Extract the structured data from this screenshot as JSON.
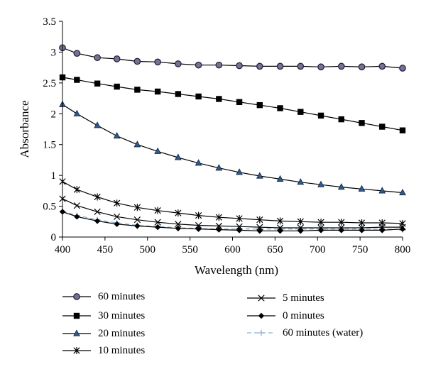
{
  "chart_data": {
    "type": "line",
    "title": "",
    "xlabel": "Wavelength (nm)",
    "ylabel": "Absorbance",
    "xlim": [
      400,
      800
    ],
    "ylim": [
      0,
      3.5
    ],
    "xticks": [
      400,
      450,
      500,
      550,
      600,
      650,
      700,
      750,
      800
    ],
    "yticks": [
      0,
      0.5,
      1,
      1.5,
      2,
      2.5,
      3,
      3.5
    ],
    "ytick_labels": [
      "0",
      "0.5",
      "1",
      "1.5",
      "2",
      "2.5",
      "3",
      "3.5"
    ],
    "grid": false,
    "legend_position": "bottom",
    "x": [
      400,
      417,
      441,
      464,
      488,
      512,
      536,
      560,
      584,
      608,
      632,
      656,
      680,
      704,
      728,
      752,
      776,
      800
    ],
    "series": [
      {
        "name": "60 minutes",
        "marker": "circle",
        "color": "#3a3050",
        "values": [
          3.07,
          2.98,
          2.91,
          2.89,
          2.85,
          2.84,
          2.81,
          2.79,
          2.79,
          2.78,
          2.77,
          2.77,
          2.77,
          2.76,
          2.77,
          2.76,
          2.77,
          2.74
        ]
      },
      {
        "name": "30 minutes",
        "marker": "square",
        "color": "#000000",
        "values": [
          2.59,
          2.55,
          2.49,
          2.44,
          2.39,
          2.36,
          2.32,
          2.28,
          2.24,
          2.19,
          2.14,
          2.09,
          2.03,
          1.97,
          1.91,
          1.85,
          1.79,
          1.73
        ]
      },
      {
        "name": "20 minutes",
        "marker": "triangle",
        "color": "#1f3f66",
        "values": [
          2.15,
          2.0,
          1.81,
          1.64,
          1.5,
          1.39,
          1.29,
          1.2,
          1.12,
          1.05,
          0.99,
          0.94,
          0.89,
          0.85,
          0.81,
          0.78,
          0.75,
          0.72
        ]
      },
      {
        "name": "10 minutes",
        "marker": "asterisk",
        "color": "#000000",
        "values": [
          0.9,
          0.77,
          0.65,
          0.55,
          0.48,
          0.43,
          0.39,
          0.35,
          0.32,
          0.3,
          0.28,
          0.26,
          0.25,
          0.24,
          0.24,
          0.23,
          0.23,
          0.22
        ]
      },
      {
        "name": "5 minutes",
        "marker": "x",
        "color": "#000000",
        "values": [
          0.62,
          0.51,
          0.41,
          0.33,
          0.28,
          0.24,
          0.21,
          0.19,
          0.18,
          0.17,
          0.16,
          0.15,
          0.15,
          0.15,
          0.15,
          0.15,
          0.16,
          0.16
        ]
      },
      {
        "name": "0 minutes",
        "marker": "diamond",
        "color": "#000000",
        "values": [
          0.41,
          0.33,
          0.26,
          0.21,
          0.18,
          0.16,
          0.14,
          0.13,
          0.12,
          0.11,
          0.1,
          0.1,
          0.1,
          0.11,
          0.11,
          0.11,
          0.11,
          0.13
        ]
      },
      {
        "name": "60 minutes (water)",
        "marker": "plus",
        "color": "#8fb0d0",
        "dashed": true,
        "values": [
          0.42,
          0.35,
          0.28,
          0.23,
          0.19,
          0.17,
          0.15,
          0.14,
          0.13,
          0.13,
          0.13,
          0.13,
          0.13,
          0.13,
          0.13,
          0.13,
          0.13,
          0.12
        ]
      }
    ]
  }
}
